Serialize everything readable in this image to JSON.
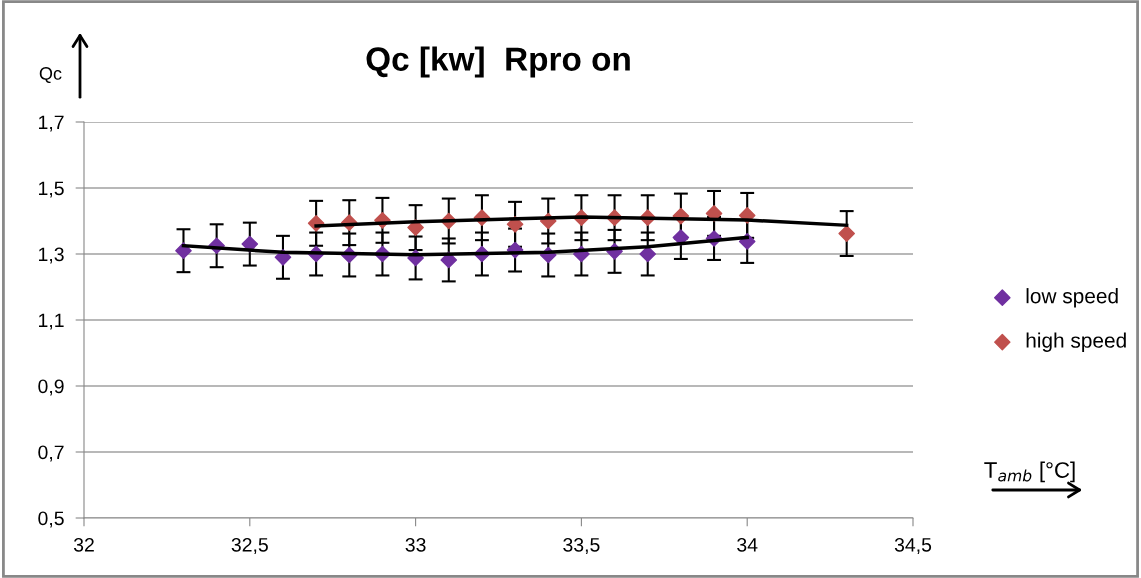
{
  "chart_data": {
    "type": "scatter",
    "title": "Qc [kw]  Rpro on",
    "xlabel": "T$_{amb}$ [°C]",
    "ylabel": "Qc",
    "xlim": [
      32,
      34.5
    ],
    "xticks": [
      {
        "value": 32,
        "label": "32"
      },
      {
        "value": 32.5,
        "label": "32,5"
      },
      {
        "value": 33,
        "label": "33"
      },
      {
        "value": 33.5,
        "label": "33,5"
      },
      {
        "value": 34,
        "label": "34"
      },
      {
        "value": 34.5,
        "label": "34,5"
      }
    ],
    "ylim": [
      0.5,
      1.7
    ],
    "yticks": [
      {
        "value": 0.5,
        "label": "0,5"
      },
      {
        "value": 0.7,
        "label": "0,7"
      },
      {
        "value": 0.9,
        "label": "0,9"
      },
      {
        "value": 1.1,
        "label": "1,1"
      },
      {
        "value": 1.3,
        "label": "1,3"
      },
      {
        "value": 1.5,
        "label": "1,5"
      },
      {
        "value": 1.7,
        "label": "1,7"
      }
    ],
    "grid": "y",
    "legend": "right",
    "marker": "diamond",
    "series": [
      {
        "name": "low speed",
        "color": "#7030a0",
        "x": [
          32.3,
          32.4,
          32.5,
          32.6,
          32.7,
          32.8,
          32.9,
          33.0,
          33.1,
          33.2,
          33.3,
          33.4,
          33.5,
          33.6,
          33.7,
          33.8,
          33.9,
          34.0
        ],
        "values": [
          1.31,
          1.325,
          1.33,
          1.29,
          1.3,
          1.297,
          1.3,
          1.288,
          1.282,
          1.3,
          1.312,
          1.297,
          1.3,
          1.308,
          1.3,
          1.35,
          1.347,
          1.338
        ],
        "errors": [
          0.065,
          0.065,
          0.065,
          0.065,
          0.065,
          0.065,
          0.065,
          0.065,
          0.065,
          0.065,
          0.065,
          0.065,
          0.065,
          0.065,
          0.065,
          0.065,
          0.065,
          0.065
        ]
      },
      {
        "name": "high speed",
        "color": "#c0504d",
        "x": [
          32.7,
          32.8,
          32.9,
          33.0,
          33.1,
          33.2,
          33.3,
          33.4,
          33.5,
          33.6,
          33.7,
          33.8,
          33.9,
          34.0,
          34.3
        ],
        "values": [
          1.393,
          1.395,
          1.402,
          1.38,
          1.4,
          1.41,
          1.39,
          1.4,
          1.41,
          1.41,
          1.41,
          1.415,
          1.423,
          1.417,
          1.362
        ],
        "errors": [
          0.068,
          0.068,
          0.068,
          0.068,
          0.068,
          0.068,
          0.068,
          0.068,
          0.068,
          0.068,
          0.068,
          0.068,
          0.068,
          0.068,
          0.068
        ]
      },
      {
        "type": "line",
        "color": "#000000",
        "marker": "none",
        "x": [
          32.3,
          32.6,
          33.0,
          33.4,
          33.7,
          34.0
        ],
        "values": [
          1.325,
          1.305,
          1.298,
          1.305,
          1.322,
          1.35
        ]
      },
      {
        "type": "line",
        "color": "#000000",
        "marker": "none",
        "x": [
          32.7,
          33.0,
          33.5,
          34.0,
          34.3
        ],
        "values": [
          1.385,
          1.398,
          1.412,
          1.403,
          1.387
        ]
      }
    ]
  }
}
